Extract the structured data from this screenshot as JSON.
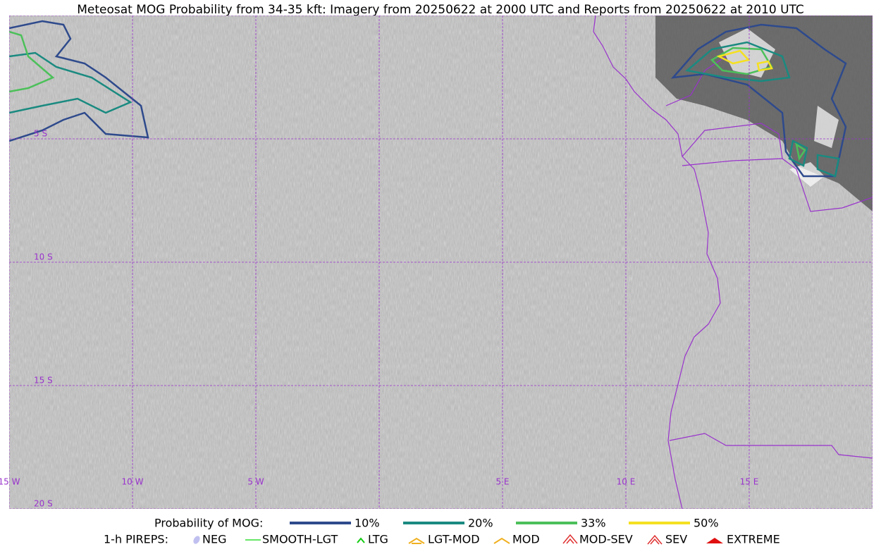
{
  "title": "Meteosat MOG Probability from 34-35 kft: Imagery from 20250622 at 2000 UTC and Reports from 20250622 at 2010 UTC",
  "map": {
    "lat_labels": [
      "5 S",
      "10 S",
      "15 S",
      "20 S"
    ],
    "lon_labels": [
      "15 W",
      "10 W",
      "5 W",
      "5 E",
      "10 E",
      "15 E"
    ]
  },
  "legend": {
    "mog_title": "Probability of MOG:",
    "mog_items": [
      {
        "label": "10%",
        "color": "#2e4a8c"
      },
      {
        "label": "20%",
        "color": "#1a8a80"
      },
      {
        "label": "33%",
        "color": "#4cc05a"
      },
      {
        "label": "50%",
        "color": "#f5e020"
      }
    ],
    "pirep_title": "1-h PIREPS:",
    "pirep_items": [
      {
        "label": "NEG",
        "color": "#c0c0f0"
      },
      {
        "label": "SMOOTH-LGT",
        "color": "#33dd33"
      },
      {
        "label": "LTG",
        "color": "#11cc11"
      },
      {
        "label": "LGT-MOD",
        "color": "#f0b020"
      },
      {
        "label": "MOD",
        "color": "#f0b020"
      },
      {
        "label": "MOD-SEV",
        "color": "#e03030"
      },
      {
        "label": "SEV",
        "color": "#e03030"
      },
      {
        "label": "EXTREME",
        "color": "#e01010"
      }
    ]
  }
}
